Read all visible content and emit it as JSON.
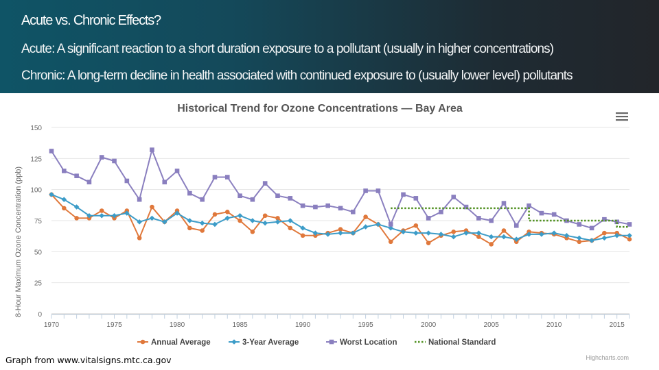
{
  "slide": {
    "title": "Acute vs. Chronic Effects?",
    "bullet_acute": "Acute: A significant reaction to a short duration exposure to a pollutant (usually in higher concentrations)",
    "bullet_chronic": "Chronic: A long-term decline in health associated with continued exposure to (usually lower level) pollutants"
  },
  "credit": "Graph from www.vitalsigns.mtc.ca.gov",
  "highcharts_credit": "Highcharts.com",
  "menu_icon": "hamburger-menu-icon",
  "colors": {
    "annual": "#e0783b",
    "three_year": "#3c9cc8",
    "worst": "#8a7fbf",
    "standard": "#4e8f1e",
    "title": "#555555",
    "axis_text": "#666666",
    "grid": "#e4e4e4",
    "header_start": "#0f5466",
    "header_end": "#22252a"
  },
  "chart_data": {
    "type": "line",
    "title": "Historical Trend for Ozone Concentrations — Bay Area",
    "xlabel": "",
    "ylabel": "8-Hour Maximum Ozone Concentration (ppb)",
    "xlim": [
      1970,
      2016
    ],
    "ylim": [
      0,
      150
    ],
    "xticks": [
      1970,
      1975,
      1980,
      1985,
      1990,
      1995,
      2000,
      2005,
      2010,
      2015
    ],
    "yticks": [
      0,
      25,
      50,
      75,
      100,
      125,
      150
    ],
    "grid": true,
    "legend_position": "bottom",
    "x": [
      1970,
      1971,
      1972,
      1973,
      1974,
      1975,
      1976,
      1977,
      1978,
      1979,
      1980,
      1981,
      1982,
      1983,
      1984,
      1985,
      1986,
      1987,
      1988,
      1989,
      1990,
      1991,
      1992,
      1993,
      1994,
      1995,
      1996,
      1997,
      1998,
      1999,
      2000,
      2001,
      2002,
      2003,
      2004,
      2005,
      2006,
      2007,
      2008,
      2009,
      2010,
      2011,
      2012,
      2013,
      2014,
      2015,
      2016
    ],
    "series": [
      {
        "name": "Annual Average",
        "key": "annual",
        "style": "solid-marker",
        "values": [
          96,
          85,
          77,
          77,
          83,
          77,
          83,
          61,
          86,
          74,
          83,
          69,
          67,
          80,
          82,
          75,
          66,
          79,
          77,
          69,
          63,
          63,
          65,
          68,
          65,
          78,
          72,
          58,
          67,
          71,
          57,
          63,
          66,
          67,
          62,
          56,
          67,
          58,
          66,
          65,
          64,
          61,
          58,
          59,
          65,
          65,
          60
        ]
      },
      {
        "name": "3-Year Average",
        "key": "three_year",
        "style": "solid-marker",
        "values": [
          96,
          92,
          86,
          79,
          79,
          79,
          81,
          74,
          77,
          74,
          81,
          75,
          73,
          72,
          77,
          79,
          75,
          73,
          74,
          75,
          69,
          65,
          64,
          65,
          65,
          70,
          72,
          69,
          66,
          65,
          65,
          64,
          62,
          65,
          65,
          62,
          62,
          60,
          64,
          64,
          65,
          63,
          61,
          59,
          61,
          63,
          63
        ]
      },
      {
        "name": "Worst Location",
        "key": "worst",
        "style": "solid-marker",
        "values": [
          131,
          115,
          111,
          106,
          126,
          123,
          107,
          92,
          132,
          106,
          115,
          97,
          92,
          110,
          110,
          95,
          92,
          105,
          95,
          93,
          87,
          86,
          87,
          85,
          82,
          99,
          99,
          72,
          96,
          93,
          77,
          82,
          94,
          86,
          77,
          75,
          89,
          71,
          87,
          81,
          80,
          75,
          72,
          69,
          76,
          74,
          72
        ]
      },
      {
        "name": "National Standard",
        "key": "standard",
        "style": "dotted",
        "x": [
          1997,
          2008,
          2008,
          2015,
          2015,
          2016
        ],
        "values": [
          85,
          85,
          75,
          75,
          70,
          70
        ]
      }
    ]
  }
}
